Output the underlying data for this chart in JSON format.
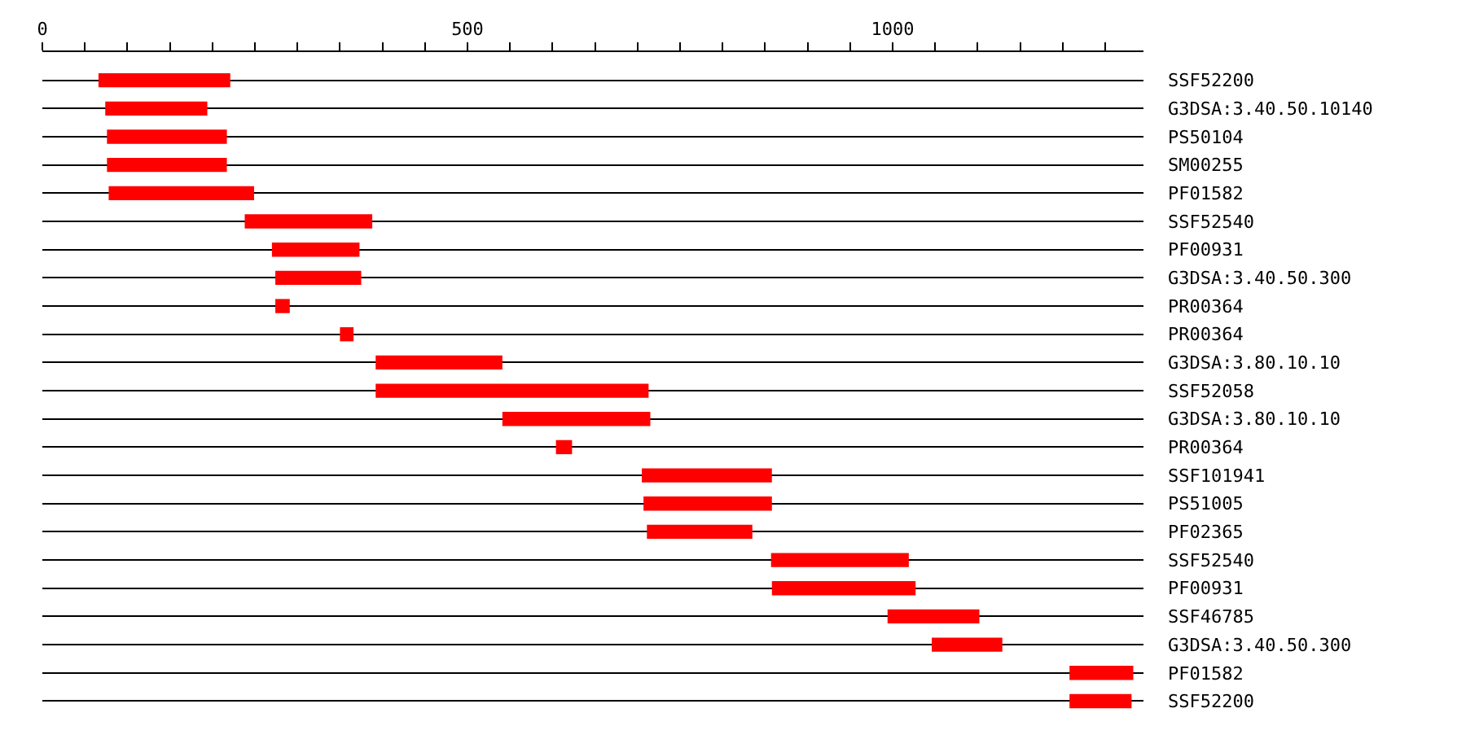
{
  "chart_data": {
    "type": "bar",
    "orientation": "horizontal",
    "categories": [
      "SSF52200",
      "G3DSA:3.40.50.10140",
      "PS50104",
      "SM00255",
      "PF01582",
      "SSF52540",
      "PF00931",
      "G3DSA:3.40.50.300",
      "PR00364",
      "PR00364",
      "G3DSA:3.80.10.10",
      "SSF52058",
      "G3DSA:3.80.10.10",
      "PR00364",
      "SSF101941",
      "PS51005",
      "PF02365",
      "SSF52540",
      "PF00931",
      "SSF46785",
      "G3DSA:3.40.50.300",
      "PF01582",
      "SSF52200"
    ],
    "base": [
      66,
      74,
      76,
      76,
      78,
      238,
      270,
      274,
      274,
      350,
      392,
      392,
      541,
      604,
      705,
      707,
      711,
      857,
      858,
      994,
      1046,
      1208,
      1208
    ],
    "values": [
      155,
      120,
      141,
      141,
      171,
      150,
      103,
      101,
      17,
      16,
      149,
      321,
      174,
      19,
      153,
      151,
      124,
      162,
      169,
      108,
      83,
      75,
      73
    ],
    "color": "#ff0000",
    "xlim": [
      0,
      1295
    ],
    "xticks": [
      0,
      {
        "value": 50,
        "label": null
      },
      {
        "value": 100,
        "label": null
      },
      {
        "value": 150,
        "label": null
      },
      {
        "value": 200,
        "label": null
      },
      {
        "value": 250,
        "label": null
      },
      {
        "value": 300,
        "label": null
      },
      {
        "value": 350,
        "label": null
      },
      {
        "value": 400,
        "label": null
      },
      {
        "value": 450,
        "label": null
      },
      500,
      {
        "value": 550,
        "label": null
      },
      {
        "value": 600,
        "label": null
      },
      {
        "value": 650,
        "label": null
      },
      {
        "value": 700,
        "label": null
      },
      {
        "value": 750,
        "label": null
      },
      {
        "value": 800,
        "label": null
      },
      {
        "value": 850,
        "label": null
      },
      {
        "value": 900,
        "label": null
      },
      {
        "value": 950,
        "label": null
      },
      1000,
      {
        "value": 1050,
        "label": null
      },
      {
        "value": 1100,
        "label": null
      },
      {
        "value": 1150,
        "label": null
      },
      {
        "value": 1200,
        "label": null
      },
      {
        "value": 1250,
        "label": null
      }
    ],
    "grid": "y"
  }
}
